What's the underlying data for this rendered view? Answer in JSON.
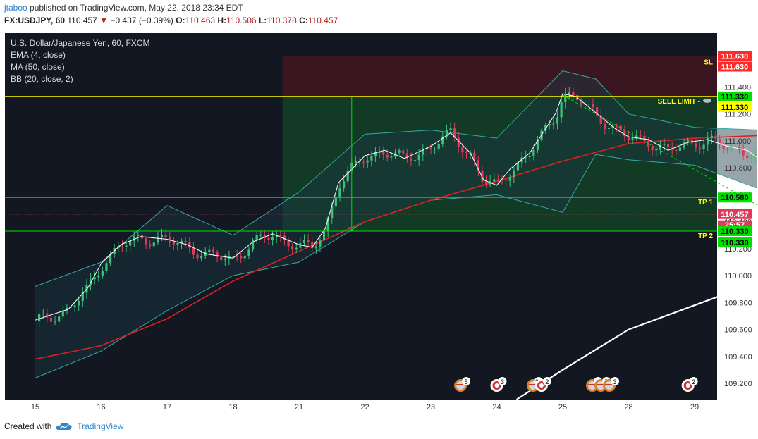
{
  "header": {
    "author": "jtaboo",
    "published": "published on TradingView.com, May 22, 2018 23:34 EDT",
    "symbol": "FX:USDJPY, 60",
    "last": "110.457",
    "change": "−0.437 (−0.39%)",
    "o_label": "O:",
    "o": "110.463",
    "h_label": "H:",
    "h": "110.506",
    "l_label": "L:",
    "l": "110.378",
    "c_label": "C:",
    "c": "110.457",
    "arrow": "▼"
  },
  "legend": {
    "title": "U.S. Dollar/Japanese Yen, 60, FXCM",
    "ema": "EMA (4, close)",
    "ma": "MA (50, close)",
    "bb": "BB (20, close, 2)"
  },
  "footer": {
    "created": "Created with",
    "brand": "TradingView"
  },
  "colors": {
    "background": "#131722",
    "sl": "#ff2a2a",
    "sell_limit": "#ffff00",
    "tp": "#00e000",
    "ma": "#e02020",
    "bb": "#36a9a0",
    "projection": "#ffffff",
    "up_candle": "#3cc07a",
    "down_candle": "#e0395a"
  },
  "chart_data": {
    "type": "candlestick",
    "symbol": "U.S. Dollar/Japanese Yen",
    "timeframe": "60",
    "y_range": [
      109.08,
      111.8
    ],
    "x_categories": [
      "15",
      "16",
      "17",
      "18",
      "21",
      "22",
      "23",
      "24",
      "25",
      "28",
      "29"
    ],
    "y_ticks": [
      "111.400",
      "111.200",
      "111.000",
      "110.800",
      "110.600",
      "110.400",
      "110.200",
      "110.000",
      "109.800",
      "109.600",
      "109.400",
      "109.200"
    ],
    "levels": [
      {
        "name": "SL",
        "value": 111.63,
        "label": "111.630"
      },
      {
        "name": "SELL LIMIT - ",
        "value": 111.33,
        "label": "111.330"
      },
      {
        "name": "TP 1",
        "value": 110.58,
        "label": "110.580"
      },
      {
        "name": "TP 2",
        "value": 110.33,
        "label": "110.330"
      }
    ],
    "last_price": {
      "value": 110.457,
      "label": "110.457",
      "countdown": "25:57"
    },
    "price_path": [
      [
        0.0,
        109.66
      ],
      [
        0.5,
        109.74
      ],
      [
        0.8,
        109.9
      ],
      [
        1.0,
        110.08
      ],
      [
        1.3,
        110.22
      ],
      [
        1.6,
        110.28
      ],
      [
        2.0,
        110.26
      ],
      [
        2.3,
        110.22
      ],
      [
        2.6,
        110.15
      ],
      [
        3.0,
        110.12
      ],
      [
        3.3,
        110.24
      ],
      [
        3.6,
        110.3
      ],
      [
        4.0,
        110.22
      ],
      [
        4.2,
        110.2
      ],
      [
        4.4,
        110.34
      ],
      [
        4.6,
        110.68
      ],
      [
        5.0,
        110.88
      ],
      [
        5.3,
        110.92
      ],
      [
        5.6,
        110.86
      ],
      [
        6.0,
        110.95
      ],
      [
        6.3,
        111.05
      ],
      [
        6.6,
        110.9
      ],
      [
        6.8,
        110.7
      ],
      [
        7.0,
        110.66
      ],
      [
        7.2,
        110.78
      ],
      [
        7.5,
        110.9
      ],
      [
        7.7,
        111.05
      ],
      [
        7.9,
        111.2
      ],
      [
        8.0,
        111.34
      ],
      [
        8.2,
        111.32
      ],
      [
        8.5,
        111.2
      ],
      [
        8.8,
        111.08
      ],
      [
        9.0,
        111.02
      ],
      [
        9.3,
        111.0
      ],
      [
        9.6,
        110.92
      ],
      [
        9.9,
        110.98
      ],
      [
        10.2,
        111.0
      ],
      [
        10.5,
        110.95
      ],
      [
        10.8,
        110.92
      ],
      [
        11.0,
        110.85
      ],
      [
        11.2,
        110.65
      ],
      [
        11.4,
        110.46
      ]
    ],
    "ma_path": [
      [
        0.0,
        109.38
      ],
      [
        1.0,
        109.48
      ],
      [
        2.0,
        109.68
      ],
      [
        3.0,
        109.96
      ],
      [
        4.0,
        110.18
      ],
      [
        5.0,
        110.4
      ],
      [
        6.0,
        110.56
      ],
      [
        7.0,
        110.7
      ],
      [
        8.0,
        110.85
      ],
      [
        9.0,
        110.98
      ],
      [
        10.0,
        111.02
      ],
      [
        11.0,
        111.04
      ],
      [
        11.4,
        111.02
      ]
    ],
    "bb_upper": [
      [
        0.0,
        109.92
      ],
      [
        1.0,
        110.1
      ],
      [
        2.0,
        110.52
      ],
      [
        3.0,
        110.3
      ],
      [
        4.0,
        110.62
      ],
      [
        5.0,
        111.05
      ],
      [
        6.0,
        111.08
      ],
      [
        7.0,
        111.02
      ],
      [
        8.0,
        111.52
      ],
      [
        8.5,
        111.46
      ],
      [
        9.0,
        111.2
      ],
      [
        10.0,
        111.1
      ],
      [
        11.0,
        111.08
      ],
      [
        11.4,
        111.18
      ]
    ],
    "bb_lower": [
      [
        0.0,
        109.24
      ],
      [
        1.0,
        109.44
      ],
      [
        2.0,
        109.74
      ],
      [
        3.0,
        110.0
      ],
      [
        4.0,
        110.1
      ],
      [
        5.0,
        110.4
      ],
      [
        6.0,
        110.56
      ],
      [
        7.0,
        110.6
      ],
      [
        8.0,
        110.47
      ],
      [
        8.5,
        110.9
      ],
      [
        9.0,
        110.86
      ],
      [
        10.0,
        110.82
      ],
      [
        11.0,
        110.64
      ],
      [
        11.4,
        110.44
      ]
    ],
    "projection_path": [
      [
        7.3,
        109.08
      ],
      [
        8.0,
        109.3
      ],
      [
        9.0,
        109.6
      ],
      [
        10.0,
        109.78
      ],
      [
        11.0,
        109.96
      ],
      [
        11.8,
        110.1
      ],
      [
        12.2,
        110.3
      ],
      [
        13.0,
        110.36
      ],
      [
        13.65,
        110.45
      ],
      [
        13.7,
        110.9
      ],
      [
        14.5,
        111.0
      ],
      [
        15.3,
        111.1
      ],
      [
        15.5,
        111.28
      ],
      [
        15.7,
        111.12
      ],
      [
        16.5,
        111.0
      ],
      [
        17.0,
        110.9
      ],
      [
        17.4,
        110.86
      ],
      [
        18.2,
        110.8
      ]
    ],
    "events": [
      {
        "time": "22",
        "count": "5",
        "type": "flag"
      },
      {
        "time": "23",
        "count": "3",
        "type": "target"
      },
      {
        "time": "24",
        "count": "27",
        "type": "flag"
      },
      {
        "time": "24",
        "count": "2",
        "type": "target"
      },
      {
        "time": "25",
        "count": "4",
        "type": "flag"
      },
      {
        "time": "25",
        "count": "7",
        "type": "flag"
      },
      {
        "time": "25",
        "count": "3",
        "type": "flag"
      },
      {
        "time": "29",
        "count": "2",
        "type": "target"
      }
    ]
  }
}
